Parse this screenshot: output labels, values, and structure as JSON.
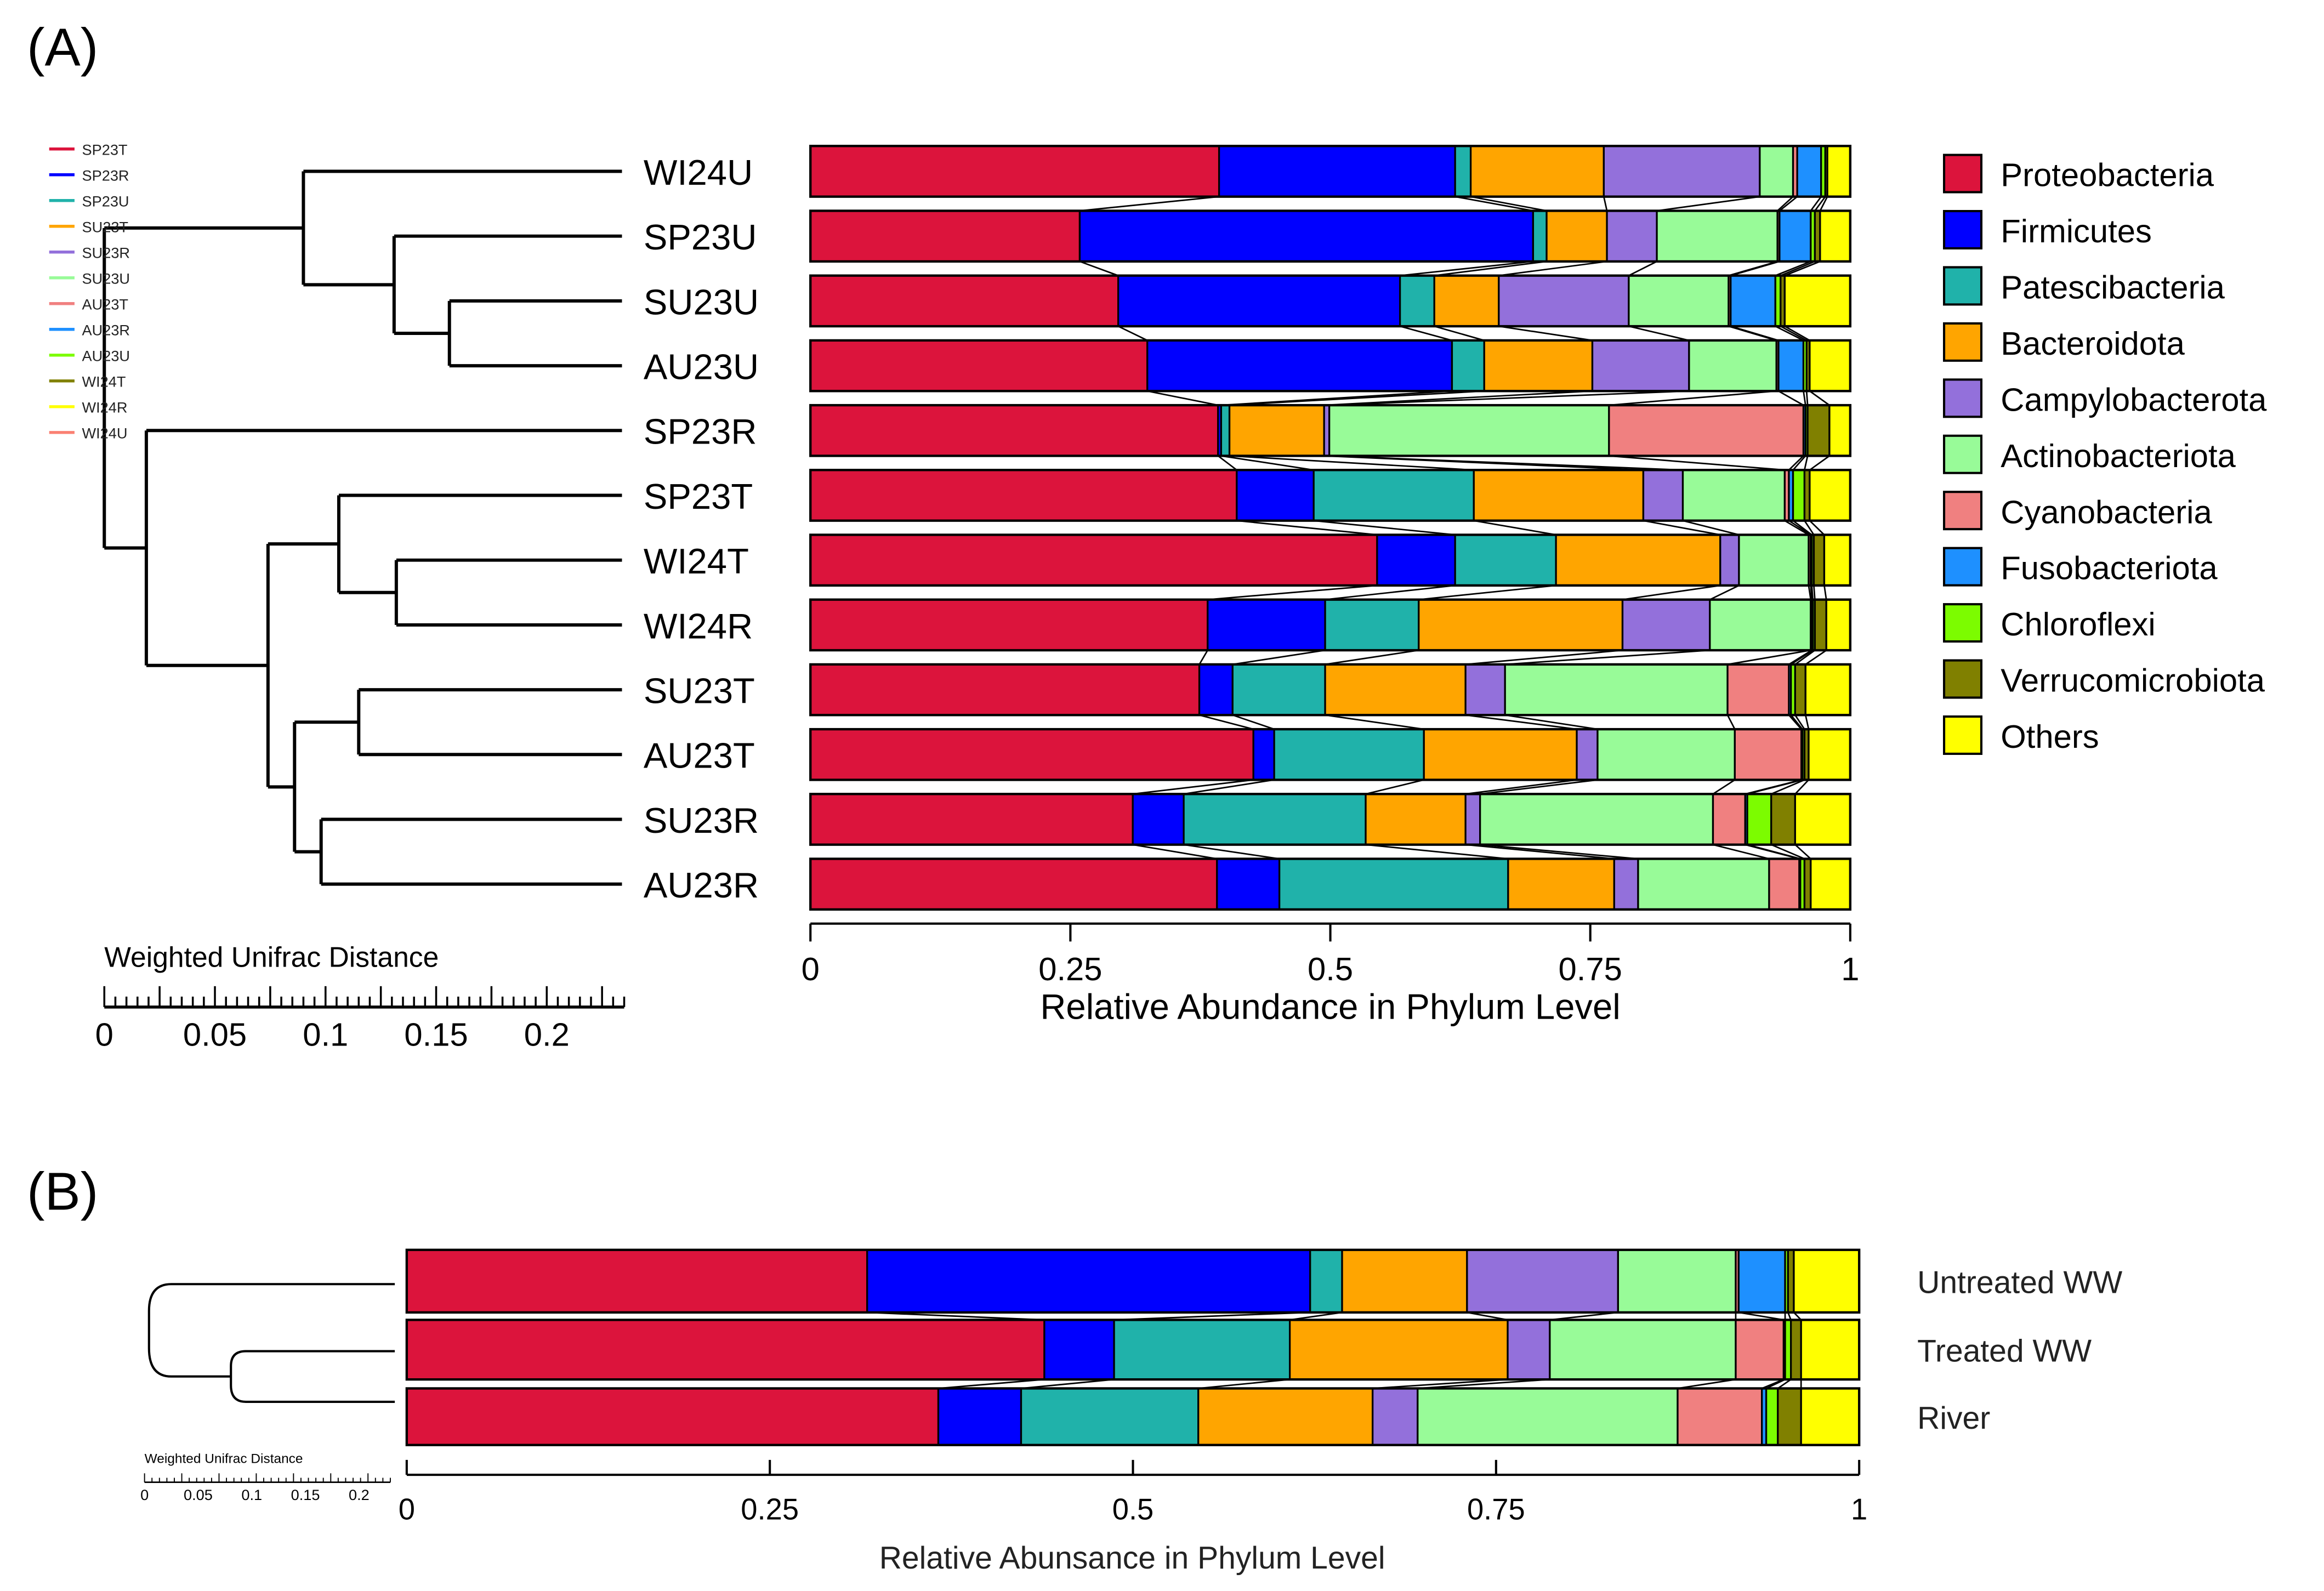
{
  "chart_data": [
    {
      "type": "bar",
      "orientation": "horizontal-stacked",
      "panel_label": "(A)",
      "xlabel": "Relative Abundance in Phylum Level",
      "xlim": [
        0,
        1
      ],
      "xticks": [
        "0",
        "0.25",
        "0.5",
        "0.75",
        "1"
      ],
      "xtick_values": [
        0,
        0.25,
        0.5,
        0.75,
        1
      ],
      "legend_position": "right",
      "phyla": [
        "Proteobacteria",
        "Firmicutes",
        "Patescibacteria",
        "Bacteroidota",
        "Campylobacterota",
        "Actinobacteriota",
        "Cyanobacteria",
        "Fusobacteriota",
        "Chloroflexi",
        "Verrucomicrobiota",
        "Others"
      ],
      "colors": [
        "#dc143c",
        "#0000ff",
        "#20b2aa",
        "#ffa500",
        "#9370db",
        "#98fb98",
        "#f08080",
        "#1e90ff",
        "#7cfc00",
        "#808000",
        "#ffff00"
      ],
      "categories": [
        "WI24U",
        "SP23U",
        "SU23U",
        "AU23U",
        "SP23R",
        "SP23T",
        "WI24T",
        "WI24R",
        "SU23T",
        "AU23T",
        "SU23R",
        "AU23R"
      ],
      "values": [
        [
          0.393,
          0.227,
          0.015,
          0.128,
          0.15,
          0.032,
          0.004,
          0.023,
          0.004,
          0.002,
          0.022
        ],
        [
          0.259,
          0.436,
          0.013,
          0.058,
          0.048,
          0.116,
          0.002,
          0.03,
          0.004,
          0.005,
          0.029
        ],
        [
          0.296,
          0.271,
          0.033,
          0.062,
          0.125,
          0.096,
          0.002,
          0.043,
          0.005,
          0.004,
          0.063
        ],
        [
          0.324,
          0.293,
          0.031,
          0.104,
          0.093,
          0.084,
          0.002,
          0.024,
          0.003,
          0.003,
          0.039
        ],
        [
          0.392,
          0.003,
          0.008,
          0.091,
          0.005,
          0.269,
          0.187,
          0.002,
          0.002,
          0.021,
          0.02
        ],
        [
          0.41,
          0.074,
          0.154,
          0.163,
          0.038,
          0.098,
          0.004,
          0.004,
          0.011,
          0.005,
          0.039
        ],
        [
          0.545,
          0.075,
          0.097,
          0.158,
          0.018,
          0.067,
          0.002,
          0.001,
          0.002,
          0.01,
          0.025
        ],
        [
          0.382,
          0.113,
          0.09,
          0.196,
          0.084,
          0.097,
          0.001,
          0.001,
          0.002,
          0.011,
          0.023
        ],
        [
          0.374,
          0.032,
          0.089,
          0.135,
          0.038,
          0.214,
          0.059,
          0.002,
          0.004,
          0.01,
          0.043
        ],
        [
          0.426,
          0.02,
          0.144,
          0.147,
          0.02,
          0.132,
          0.064,
          0.001,
          0.002,
          0.004,
          0.04
        ],
        [
          0.31,
          0.049,
          0.175,
          0.096,
          0.014,
          0.224,
          0.031,
          0.002,
          0.023,
          0.023,
          0.053
        ],
        [
          0.391,
          0.06,
          0.22,
          0.102,
          0.023,
          0.126,
          0.029,
          0.001,
          0.004,
          0.006,
          0.038
        ]
      ],
      "dendrogram": {
        "title": "Weighted Unifrac Distance",
        "scale_ticks": [
          "0",
          "0.05",
          "0.1",
          "0.15",
          "0.2"
        ],
        "scale_values": [
          0,
          0.05,
          0.1,
          0.15,
          0.2
        ],
        "scale_max": 0.235,
        "leaf_height": 0.234,
        "tree": {
          "h": 0.0,
          "c": [
            {
              "h": 0.09,
              "c": [
                "WI24U",
                {
                  "h": 0.131,
                  "c": [
                    "SP23U",
                    {
                      "h": 0.156,
                      "c": [
                        "SU23U",
                        "AU23U"
                      ]
                    }
                  ]
                }
              ]
            },
            {
              "h": 0.019,
              "c": [
                "SP23R",
                {
                  "h": 0.074,
                  "c": [
                    {
                      "h": 0.106,
                      "c": [
                        "SP23T",
                        {
                          "h": 0.132,
                          "c": [
                            "WI24T",
                            "WI24R"
                          ]
                        }
                      ]
                    },
                    {
                      "h": 0.086,
                      "c": [
                        {
                          "h": 0.115,
                          "c": [
                            "SU23T",
                            "AU23T"
                          ]
                        },
                        {
                          "h": 0.098,
                          "c": [
                            "SU23R",
                            "AU23R"
                          ]
                        }
                      ]
                    }
                  ]
                }
              ]
            }
          ]
        },
        "legend": [
          {
            "label": "SP23T",
            "color": "#dc143c"
          },
          {
            "label": "SP23R",
            "color": "#0000ff"
          },
          {
            "label": "SP23U",
            "color": "#20b2aa"
          },
          {
            "label": "SU23T",
            "color": "#ffa500"
          },
          {
            "label": "SU23R",
            "color": "#9370db"
          },
          {
            "label": "SU23U",
            "color": "#98fb98"
          },
          {
            "label": "AU23T",
            "color": "#f08080"
          },
          {
            "label": "AU23R",
            "color": "#1e90ff"
          },
          {
            "label": "AU23U",
            "color": "#7cfc00"
          },
          {
            "label": "WI24T",
            "color": "#808000"
          },
          {
            "label": "WI24R",
            "color": "#ffff00"
          },
          {
            "label": "WI24U",
            "color": "#fa8072"
          }
        ]
      }
    },
    {
      "type": "bar",
      "orientation": "horizontal-stacked",
      "panel_label": "(B)",
      "xlabel": "Relative Abunsance in Phylum Level",
      "xlim": [
        0,
        1
      ],
      "xticks": [
        "0",
        "0.25",
        "0.5",
        "0.75",
        "1"
      ],
      "xtick_values": [
        0,
        0.25,
        0.5,
        0.75,
        1
      ],
      "categories": [
        "Untreated WW",
        "Treated WW",
        "River"
      ],
      "values": [
        [
          0.317,
          0.305,
          0.022,
          0.086,
          0.104,
          0.081,
          0.002,
          0.032,
          0.002,
          0.004,
          0.045
        ],
        [
          0.439,
          0.048,
          0.121,
          0.15,
          0.029,
          0.128,
          0.033,
          0.001,
          0.004,
          0.007,
          0.04
        ],
        [
          0.366,
          0.057,
          0.122,
          0.12,
          0.031,
          0.179,
          0.058,
          0.003,
          0.008,
          0.016,
          0.04
        ]
      ],
      "dendrogram": {
        "title": "Weighted Unifrac Distance",
        "scale_ticks": [
          "0",
          "0.05",
          "0.1",
          "0.15",
          "0.2"
        ]
      }
    }
  ]
}
